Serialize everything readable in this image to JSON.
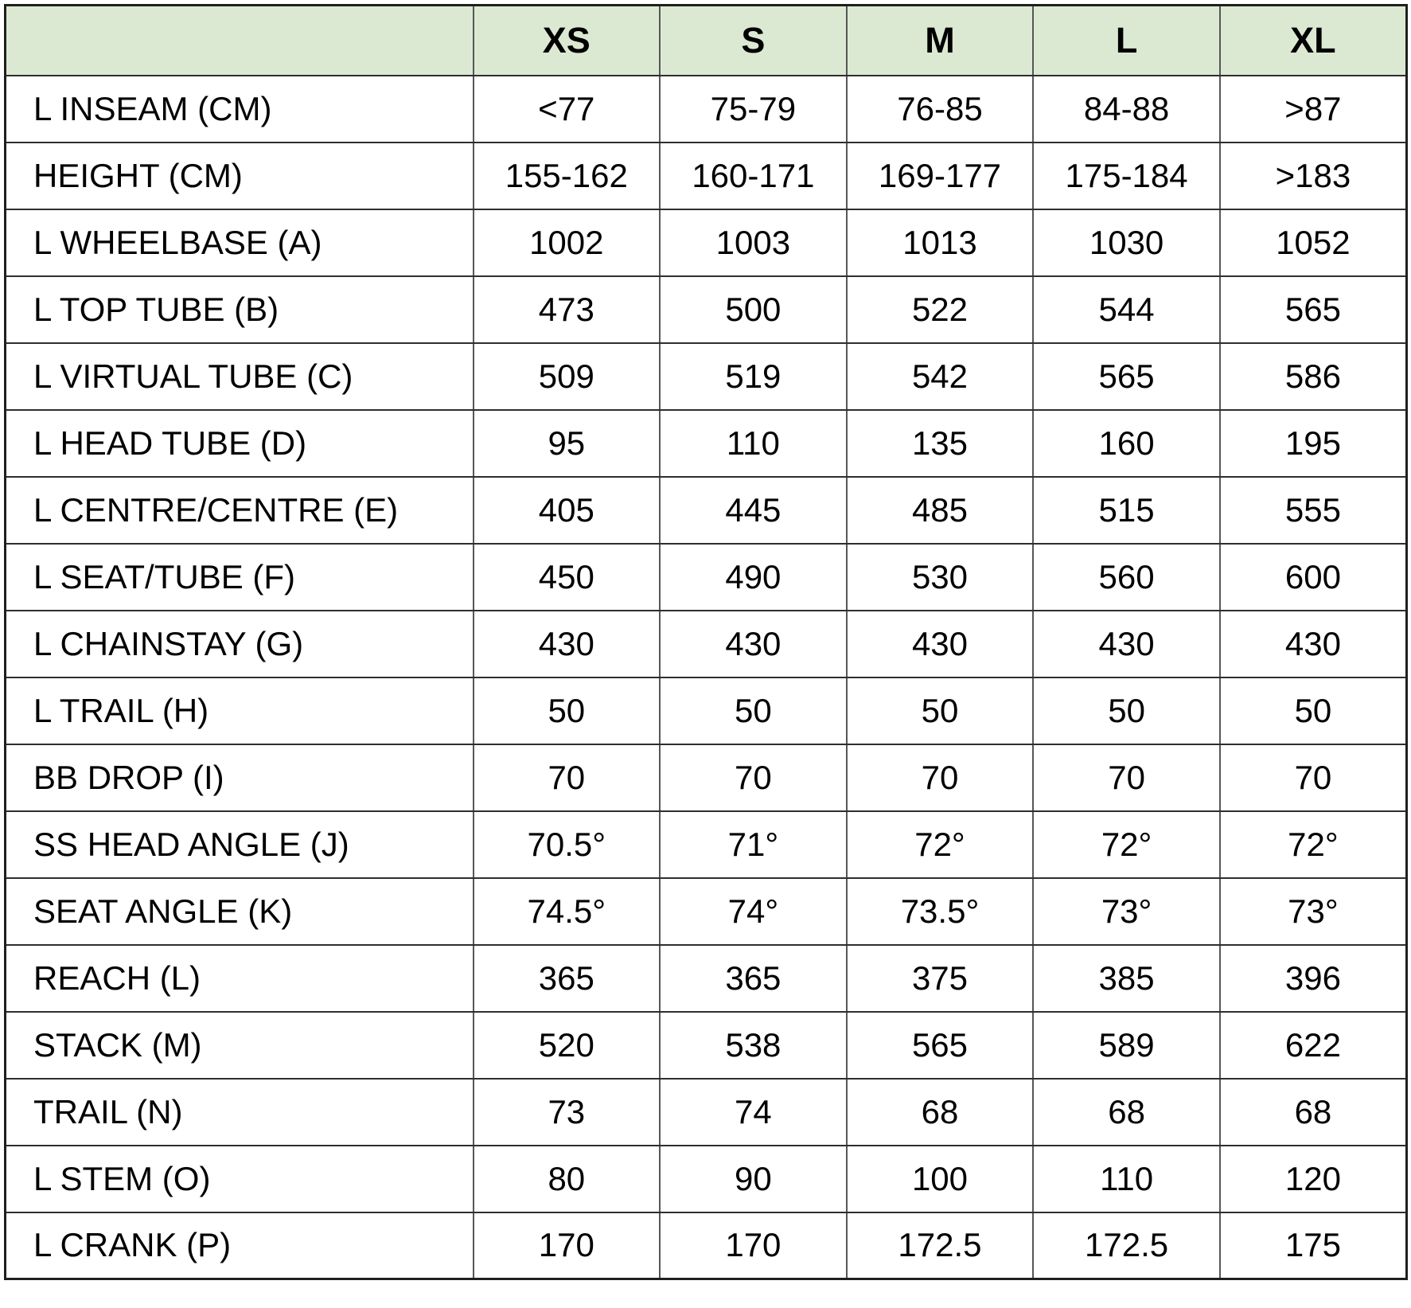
{
  "colors": {
    "header_bg": "#dce9d2",
    "border_outer": "#1f1f1f",
    "border_horizontal": "#2e2e2e",
    "border_vertical": "#565656",
    "text": "#000000",
    "page_bg": "#ffffff"
  },
  "chart_data": {
    "type": "table",
    "columns": [
      "",
      "XS",
      "S",
      "M",
      "L",
      "XL"
    ],
    "rows": [
      {
        "label": "L INSEAM (CM)",
        "values": [
          "<77",
          "75-79",
          "76-85",
          "84-88",
          ">87"
        ]
      },
      {
        "label": "HEIGHT (CM)",
        "values": [
          "155-162",
          "160-171",
          "169-177",
          "175-184",
          ">183"
        ]
      },
      {
        "label": "L WHEELBASE (A)",
        "values": [
          "1002",
          "1003",
          "1013",
          "1030",
          "1052"
        ]
      },
      {
        "label": "L TOP TUBE (B)",
        "values": [
          "473",
          "500",
          "522",
          "544",
          "565"
        ]
      },
      {
        "label": "L VIRTUAL TUBE (C)",
        "values": [
          "509",
          "519",
          "542",
          "565",
          "586"
        ]
      },
      {
        "label": "L HEAD TUBE (D)",
        "values": [
          "95",
          "110",
          "135",
          "160",
          "195"
        ]
      },
      {
        "label": "L CENTRE/CENTRE (E)",
        "values": [
          "405",
          "445",
          "485",
          "515",
          "555"
        ]
      },
      {
        "label": "L SEAT/TUBE (F)",
        "values": [
          "450",
          "490",
          "530",
          "560",
          "600"
        ]
      },
      {
        "label": "L CHAINSTAY (G)",
        "values": [
          "430",
          "430",
          "430",
          "430",
          "430"
        ]
      },
      {
        "label": "L TRAIL (H)",
        "values": [
          "50",
          "50",
          "50",
          "50",
          "50"
        ]
      },
      {
        "label": "BB DROP (I)",
        "values": [
          "70",
          "70",
          "70",
          "70",
          "70"
        ]
      },
      {
        "label": "SS HEAD ANGLE (J)",
        "values": [
          "70.5°",
          "71°",
          "72°",
          "72°",
          "72°"
        ]
      },
      {
        "label": "SEAT ANGLE (K)",
        "values": [
          "74.5°",
          "74°",
          "73.5°",
          "73°",
          "73°"
        ]
      },
      {
        "label": "REACH (L)",
        "values": [
          "365",
          "365",
          "375",
          "385",
          "396"
        ]
      },
      {
        "label": "STACK (M)",
        "values": [
          "520",
          "538",
          "565",
          "589",
          "622"
        ]
      },
      {
        "label": "TRAIL (N)",
        "values": [
          "73",
          "74",
          "68",
          "68",
          "68"
        ]
      },
      {
        "label": "L STEM (O)",
        "values": [
          "80",
          "90",
          "100",
          "110",
          "120"
        ]
      },
      {
        "label": "L CRANK (P)",
        "values": [
          "170",
          "170",
          "172.5",
          "172.5",
          "175"
        ]
      }
    ]
  }
}
